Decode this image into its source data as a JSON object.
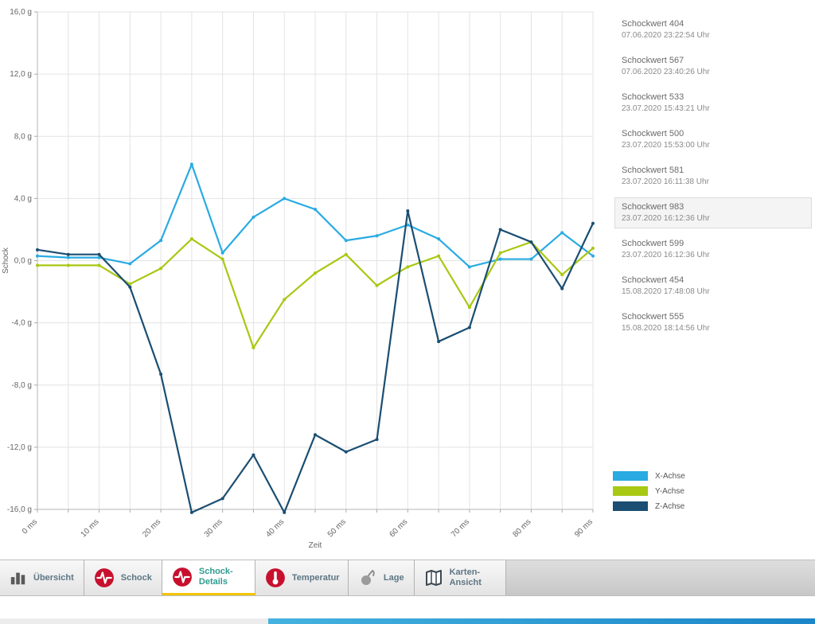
{
  "chart_data": {
    "type": "line",
    "title": "",
    "xlabel": "Zeit",
    "ylabel": "Schock",
    "grid": true,
    "legend_position": "bottom-right",
    "ylim": [
      -16,
      16
    ],
    "y_ticks": [
      16,
      12,
      8,
      4,
      0,
      -4,
      -8,
      -12,
      -16
    ],
    "y_tick_labels": [
      "16,0 g",
      "12,0 g",
      "8,0 g",
      "4,0 g",
      "0,0 g",
      "-4,0 g",
      "-8,0 g",
      "-12,0 g",
      "-16,0 g"
    ],
    "x": [
      0,
      5,
      10,
      15,
      20,
      25,
      30,
      35,
      40,
      45,
      50,
      55,
      60,
      65,
      70,
      75,
      80,
      85,
      90
    ],
    "x_tick_labels": [
      "0 ms",
      "10 ms",
      "20 ms",
      "30 ms",
      "40 ms",
      "50 ms",
      "60 ms",
      "70 ms",
      "80 ms",
      "90 ms"
    ],
    "series": [
      {
        "name": "X-Achse",
        "color": "#29abe2",
        "values": [
          0.3,
          0.2,
          0.2,
          -0.2,
          1.3,
          6.2,
          0.5,
          2.8,
          4.0,
          3.3,
          1.3,
          1.6,
          2.3,
          1.4,
          -0.4,
          0.1,
          0.1,
          1.8,
          0.3
        ]
      },
      {
        "name": "Y-Achse",
        "color": "#a8c813",
        "values": [
          -0.3,
          -0.3,
          -0.3,
          -1.5,
          -0.5,
          1.4,
          0.1,
          -5.6,
          -2.5,
          -0.8,
          0.4,
          -1.6,
          -0.4,
          0.3,
          -3.0,
          0.5,
          1.2,
          -0.9,
          0.8
        ]
      },
      {
        "name": "Z-Achse",
        "color": "#1b4e72",
        "values": [
          0.7,
          0.4,
          0.4,
          -1.7,
          -7.3,
          -16.2,
          -15.3,
          -12.5,
          -16.2,
          -11.2,
          -12.3,
          -11.5,
          3.2,
          -5.2,
          -4.3,
          2.0,
          1.2,
          -1.8,
          2.4
        ]
      }
    ]
  },
  "shock_list": {
    "items": [
      {
        "label": "Schockwert 404",
        "timestamp": "07.06.2020 23:22:54 Uhr",
        "selected": false
      },
      {
        "label": "Schockwert 567",
        "timestamp": "07.06.2020 23:40:26 Uhr",
        "selected": false
      },
      {
        "label": "Schockwert 533",
        "timestamp": "23.07.2020 15:43:21 Uhr",
        "selected": false
      },
      {
        "label": "Schockwert 500",
        "timestamp": "23.07.2020 15:53:00 Uhr",
        "selected": false
      },
      {
        "label": "Schockwert 581",
        "timestamp": "23.07.2020 16:11:38 Uhr",
        "selected": false
      },
      {
        "label": "Schockwert 983",
        "timestamp": "23.07.2020 16:12:36 Uhr",
        "selected": true
      },
      {
        "label": "Schockwert 599",
        "timestamp": "23.07.2020 16:12:36 Uhr",
        "selected": false
      },
      {
        "label": "Schockwert 454",
        "timestamp": "15.08.2020 17:48:08 Uhr",
        "selected": false
      },
      {
        "label": "Schockwert 555",
        "timestamp": "15.08.2020 18:14:56 Uhr",
        "selected": false
      }
    ]
  },
  "legend": {
    "items": [
      {
        "label": "X-Achse",
        "color": "#29abe2"
      },
      {
        "label": "Y-Achse",
        "color": "#a8c813"
      },
      {
        "label": "Z-Achse",
        "color": "#1b4e72"
      }
    ]
  },
  "tabs": [
    {
      "label": "Übersicht",
      "icon": "bar-chart-icon",
      "active": false
    },
    {
      "label": "Schock",
      "icon": "shock-icon",
      "active": false
    },
    {
      "label": "Schock-Details",
      "icon": "shock-icon",
      "active": true
    },
    {
      "label": "Temperatur",
      "icon": "thermometer-icon",
      "active": false
    },
    {
      "label": "Lage",
      "icon": "orientation-icon",
      "active": false
    },
    {
      "label": "Karten-Ansicht",
      "icon": "map-icon",
      "active": false
    }
  ],
  "colors": {
    "accent_blue": "#29abe2",
    "accent_green": "#a8c813",
    "accent_navy": "#1b4e72",
    "icon_red": "#c8102e",
    "active_tab_text": "#2e9c8e",
    "active_tab_underline": "#f2c500"
  }
}
